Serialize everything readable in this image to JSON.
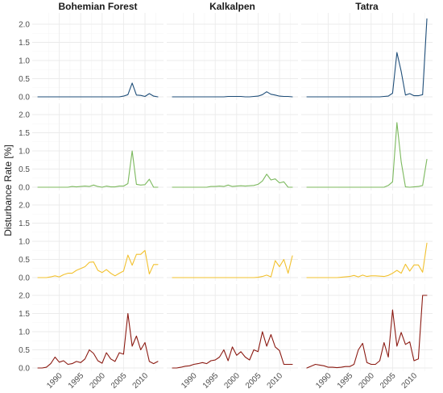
{
  "chart_data": {
    "type": "line",
    "ylabel": "Disturbance Rate [%]",
    "xlabel": "",
    "facets": [
      "Bohemian Forest",
      "Kalkalpen",
      "Tatra"
    ],
    "xlim": [
      1985,
      2013
    ],
    "x_ticks": [
      1990,
      1995,
      2000,
      2005,
      2010
    ],
    "ylim": [
      0,
      2.2
    ],
    "y_ticks": [
      0.0,
      0.5,
      1.0,
      1.5,
      2.0
    ],
    "y_tick_labels": [
      "0.0",
      "0.5",
      "1.0",
      "1.5",
      "2.0"
    ],
    "grid": true,
    "years": [
      1985,
      1986,
      1987,
      1988,
      1989,
      1990,
      1991,
      1992,
      1993,
      1994,
      1995,
      1996,
      1997,
      1998,
      1999,
      2000,
      2001,
      2002,
      2003,
      2004,
      2005,
      2006,
      2007,
      2008,
      2009,
      2010,
      2011,
      2012,
      2013
    ],
    "rows": [
      {
        "color": "#1f4e79",
        "series": [
          [
            0,
            0,
            0,
            0,
            0,
            0,
            0,
            0,
            0,
            0,
            0,
            0,
            0,
            0,
            0,
            0,
            0,
            0,
            0,
            0,
            0.02,
            0.06,
            0.38,
            0.05,
            0.04,
            0.01,
            0.09,
            0.02,
            0.0
          ],
          [
            0,
            0,
            0,
            0,
            0,
            0,
            0,
            0,
            0,
            0,
            0,
            0,
            0,
            0.01,
            0.01,
            0.01,
            0.01,
            0,
            0,
            0.01,
            0.02,
            0.06,
            0.14,
            0.07,
            0.05,
            0.02,
            0.01,
            0.01,
            0.0
          ],
          [
            0,
            0,
            0,
            0,
            0,
            0,
            0,
            0,
            0,
            0,
            0,
            0,
            0,
            0,
            0,
            0,
            0,
            0,
            0.01,
            0.02,
            0.1,
            1.22,
            0.7,
            0.05,
            0.09,
            0.03,
            0.03,
            0.06,
            2.15
          ]
        ]
      },
      {
        "color": "#7cb95e",
        "series": [
          [
            0,
            0,
            0,
            0,
            0,
            0,
            0,
            0,
            0.02,
            0.01,
            0.02,
            0.03,
            0.02,
            0.06,
            0.02,
            0.0,
            0.03,
            0.01,
            0.01,
            0.03,
            0.03,
            0.1,
            1.0,
            0.08,
            0.06,
            0.07,
            0.22,
            0.0,
            0.0
          ],
          [
            0,
            0,
            0,
            0,
            0,
            0,
            0,
            0,
            0,
            0.02,
            0.02,
            0.03,
            0.02,
            0.06,
            0.02,
            0.03,
            0.04,
            0.03,
            0.04,
            0.05,
            0.08,
            0.17,
            0.36,
            0.2,
            0.23,
            0.12,
            0.15,
            0.0,
            0.0
          ],
          [
            0,
            0,
            0,
            0,
            0,
            0,
            0,
            0,
            0,
            0,
            0,
            0,
            0,
            0,
            0,
            0,
            0,
            0,
            0,
            0.05,
            0.15,
            1.78,
            0.7,
            0.01,
            0.0,
            0.01,
            0.02,
            0.05,
            0.77
          ]
        ]
      },
      {
        "color": "#f2c12e",
        "series": [
          [
            0.0,
            0.0,
            0.0,
            0.02,
            0.05,
            0.02,
            0.08,
            0.12,
            0.12,
            0.2,
            0.25,
            0.3,
            0.42,
            0.43,
            0.2,
            0.14,
            0.22,
            0.12,
            0.05,
            0.12,
            0.18,
            0.62,
            0.34,
            0.64,
            0.64,
            0.75,
            0.1,
            0.36,
            0.36
          ],
          [
            0,
            0,
            0,
            0,
            0,
            0,
            0,
            0,
            0,
            0,
            0,
            0,
            0,
            0,
            0,
            0,
            0,
            0,
            0,
            0,
            0.01,
            0.03,
            0.07,
            0.02,
            0.47,
            0.3,
            0.5,
            0.12,
            0.6
          ],
          [
            0,
            0,
            0,
            0,
            0,
            0,
            0,
            0,
            0.01,
            0.02,
            0.03,
            0.06,
            0.02,
            0.07,
            0.03,
            0.05,
            0.05,
            0.04,
            0.03,
            0.06,
            0.12,
            0.2,
            0.12,
            0.37,
            0.18,
            0.35,
            0.35,
            0.15,
            0.95
          ]
        ]
      },
      {
        "color": "#8b1a12",
        "series": [
          [
            0.0,
            0.0,
            0.02,
            0.12,
            0.3,
            0.16,
            0.2,
            0.1,
            0.12,
            0.18,
            0.15,
            0.25,
            0.5,
            0.4,
            0.2,
            0.13,
            0.42,
            0.25,
            0.18,
            0.42,
            0.38,
            1.5,
            0.6,
            0.88,
            0.5,
            0.7,
            0.18,
            0.12,
            0.18
          ],
          [
            0.0,
            0.0,
            0.02,
            0.05,
            0.06,
            0.1,
            0.12,
            0.15,
            0.12,
            0.2,
            0.22,
            0.3,
            0.5,
            0.2,
            0.58,
            0.35,
            0.45,
            0.3,
            0.22,
            0.5,
            0.45,
            1.0,
            0.6,
            0.92,
            0.58,
            0.48,
            0.1,
            0.1,
            0.1
          ],
          [
            0.0,
            0.05,
            0.1,
            0.08,
            0.06,
            0.02,
            0.02,
            0.01,
            0.02,
            0.04,
            0.04,
            0.1,
            0.5,
            0.68,
            0.15,
            0.1,
            0.1,
            0.2,
            0.7,
            0.3,
            1.6,
            0.6,
            0.98,
            0.65,
            0.72,
            0.2,
            0.25,
            2.0,
            2.0
          ]
        ]
      }
    ]
  }
}
